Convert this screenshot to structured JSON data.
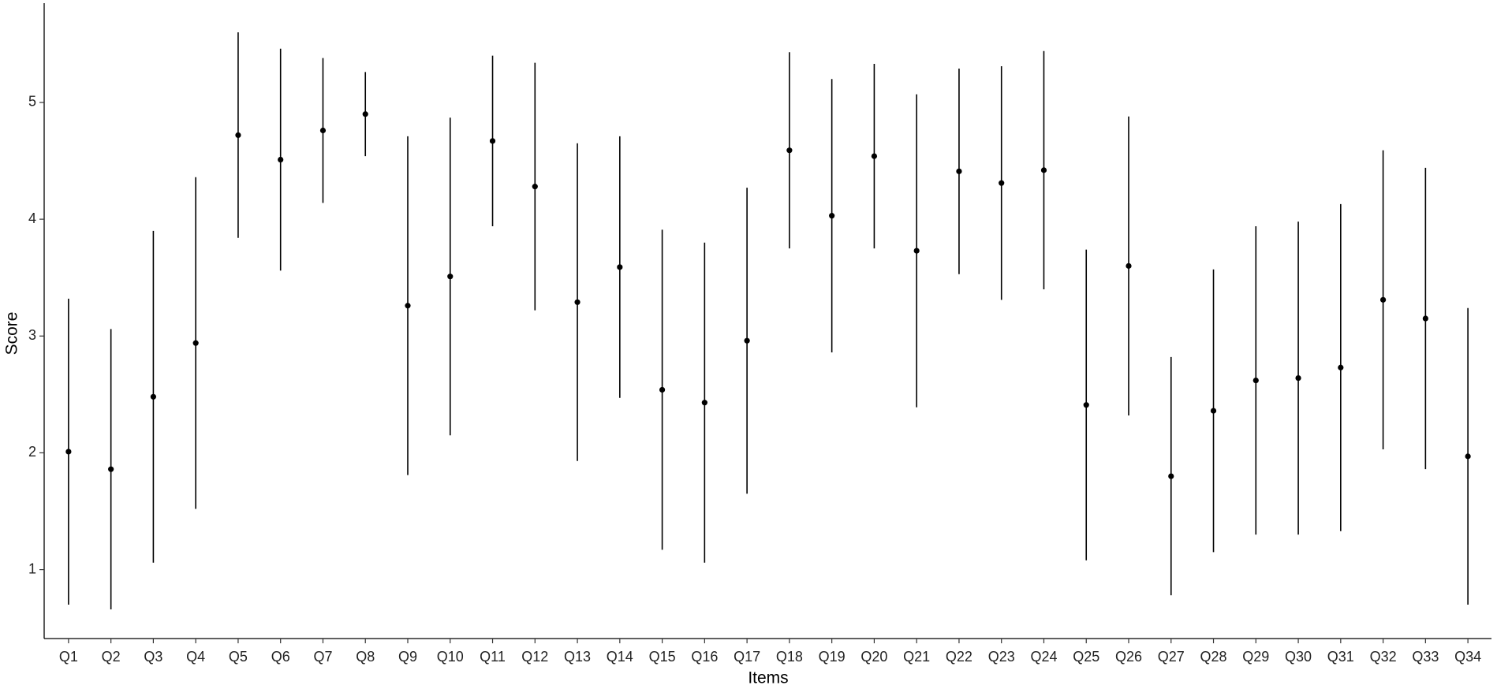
{
  "chart_data": {
    "type": "errorbar",
    "x_label": "Items",
    "y_label": "Score",
    "categories": [
      "Q1",
      "Q2",
      "Q3",
      "Q4",
      "Q5",
      "Q6",
      "Q7",
      "Q8",
      "Q9",
      "Q10",
      "Q11",
      "Q12",
      "Q13",
      "Q14",
      "Q15",
      "Q16",
      "Q17",
      "Q18",
      "Q19",
      "Q20",
      "Q21",
      "Q22",
      "Q23",
      "Q24",
      "Q25",
      "Q26",
      "Q27",
      "Q28",
      "Q29",
      "Q30",
      "Q31",
      "Q32",
      "Q33",
      "Q34"
    ],
    "values": [
      2.01,
      1.86,
      2.48,
      2.94,
      4.72,
      4.51,
      4.76,
      4.9,
      3.26,
      3.51,
      4.67,
      4.28,
      3.29,
      3.59,
      2.54,
      2.43,
      2.96,
      4.59,
      4.03,
      4.54,
      3.73,
      4.41,
      4.31,
      4.42,
      2.41,
      3.6,
      1.8,
      2.36,
      2.62,
      2.64,
      2.73,
      3.31,
      3.15,
      1.97
    ],
    "errors": [
      1.31,
      1.2,
      1.42,
      1.42,
      0.88,
      0.95,
      0.62,
      0.36,
      1.45,
      1.36,
      0.73,
      1.06,
      1.36,
      1.12,
      1.37,
      1.37,
      1.31,
      0.84,
      1.17,
      0.79,
      1.34,
      0.88,
      1.0,
      1.02,
      1.33,
      1.28,
      1.02,
      1.21,
      1.32,
      1.34,
      1.4,
      1.28,
      1.29,
      1.27
    ],
    "color": "#000000",
    "ylim": [
      0.41,
      5.85
    ],
    "yticks": [
      1,
      2,
      3,
      4,
      5
    ],
    "grid": false
  }
}
